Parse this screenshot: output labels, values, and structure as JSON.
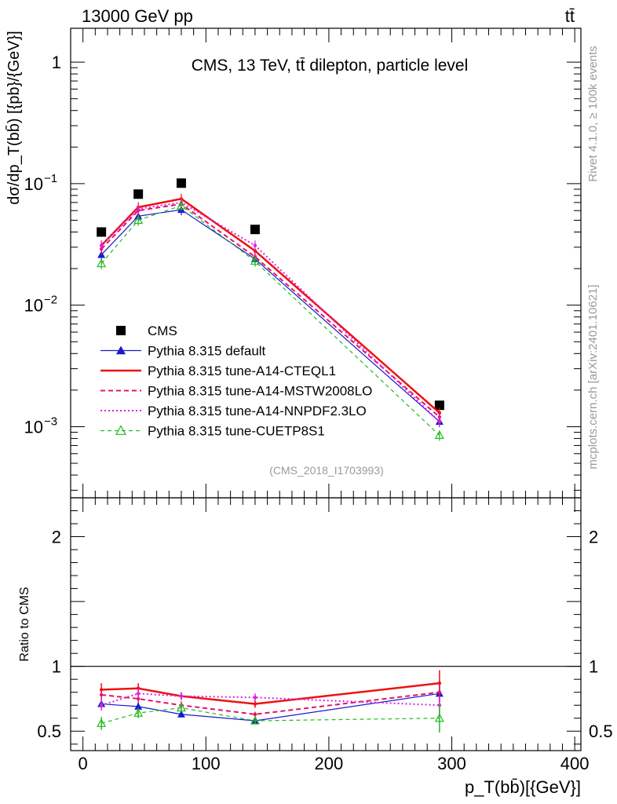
{
  "header": {
    "left": "13000 GeV pp",
    "right": "tt̄"
  },
  "side_labels": {
    "rivet": "Rivet 4.1.0, ≥ 100k events",
    "mcplots": "mcplots.cern.ch [arXiv:2401.10621]"
  },
  "chart_data": [
    {
      "type": "line",
      "title": "CMS, 13 TeV, tt̄ dilepton, particle level",
      "watermark": "(CMS_2018_I1703993)",
      "xlabel": "p_T(bb̄)[{GeV}]",
      "ylabel": "dσ/dp_T(bb̄) [{pb}/{GeV}]",
      "yscale": "log",
      "xlim": [
        -10,
        405
      ],
      "ylim": [
        0.00026,
        1.9
      ],
      "x_ticks": [
        "0",
        "100",
        "200",
        "300",
        "400"
      ],
      "y_ticks": [
        "1",
        "10^-1",
        "10^-2",
        "10^-3"
      ],
      "x": [
        15,
        45,
        80,
        140,
        290
      ],
      "series": [
        {
          "name": "CMS",
          "style": "data",
          "color": "#000000",
          "values": [
            0.04,
            0.082,
            0.101,
            0.042,
            0.0015
          ]
        },
        {
          "name": "Pythia 8.315 default",
          "style": "solid-triangle",
          "color": "#1a1acc",
          "values": [
            0.026,
            0.054,
            0.061,
            0.024,
            0.0011
          ]
        },
        {
          "name": "Pythia 8.315 tune-A14-CTEQL1",
          "style": "solid-thick",
          "color": "#ee1111",
          "values": [
            0.031,
            0.064,
            0.075,
            0.028,
            0.0013
          ]
        },
        {
          "name": "Pythia 8.315 tune-A14-MSTW2008LO",
          "style": "dashed",
          "color": "#e8106a",
          "values": [
            0.029,
            0.06,
            0.068,
            0.025,
            0.0012
          ]
        },
        {
          "name": "Pythia 8.315 tune-A14-NNPDF2.3LO",
          "style": "dotted",
          "color": "#dd22dd",
          "values": [
            0.031,
            0.062,
            0.07,
            0.031,
            0.0011
          ]
        },
        {
          "name": "Pythia 8.315 tune-CUETP8S1",
          "style": "dashed-open-triangle",
          "color": "#22bb22",
          "values": [
            0.022,
            0.05,
            0.066,
            0.023,
            0.00085
          ]
        }
      ]
    },
    {
      "type": "line",
      "ylabel": "Ratio to CMS",
      "xlim": [
        -10,
        405
      ],
      "ylim": [
        0.35,
        2.3
      ],
      "y_ticks": [
        "0.5",
        "1",
        "2"
      ],
      "x": [
        15,
        45,
        80,
        140,
        290
      ],
      "series": [
        {
          "name": "Pythia 8.315 default",
          "color": "#1a1acc",
          "values": [
            0.71,
            0.69,
            0.63,
            0.58,
            0.79
          ],
          "errors": [
            0.03,
            0.03,
            0.02,
            0.02,
            0.07
          ]
        },
        {
          "name": "Pythia 8.315 tune-A14-CTEQL1",
          "color": "#ee1111",
          "values": [
            0.82,
            0.83,
            0.77,
            0.71,
            0.87
          ],
          "errors": [
            0.05,
            0.04,
            0.03,
            0.03,
            0.1
          ]
        },
        {
          "name": "Pythia 8.315 tune-A14-MSTW2008LO",
          "color": "#e8106a",
          "values": [
            0.78,
            0.75,
            0.7,
            0.63,
            0.8
          ],
          "errors": [
            0.04,
            0.03,
            0.03,
            0.02,
            0.07
          ]
        },
        {
          "name": "Pythia 8.315 tune-A14-NNPDF2.3LO",
          "color": "#dd22dd",
          "values": [
            0.7,
            0.79,
            0.77,
            0.76,
            0.7
          ],
          "errors": [
            0.04,
            0.04,
            0.03,
            0.03,
            0.07
          ]
        },
        {
          "name": "Pythia 8.315 tune-CUETP8S1",
          "color": "#22bb22",
          "values": [
            0.56,
            0.64,
            0.68,
            0.58,
            0.6
          ],
          "errors": [
            0.05,
            0.04,
            0.03,
            0.02,
            0.11
          ]
        }
      ]
    }
  ]
}
